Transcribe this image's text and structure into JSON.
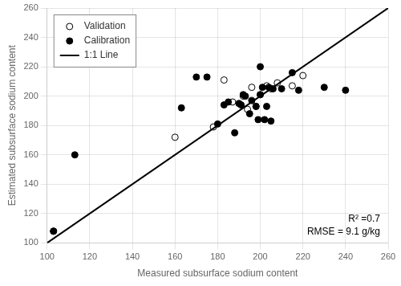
{
  "chart_data": {
    "type": "scatter",
    "xlabel": "Measured subsurface sodium content",
    "ylabel": "Estimated subsurface sodium content",
    "xlim": [
      100,
      260
    ],
    "ylim": [
      100,
      260
    ],
    "xticks": [
      100,
      120,
      140,
      160,
      180,
      200,
      220,
      240,
      260
    ],
    "yticks": [
      100,
      120,
      140,
      160,
      180,
      200,
      220,
      240,
      260
    ],
    "grid": true,
    "legend": "upper left",
    "annotations": [
      "R² =0.7",
      "RMSE = 9.1 g/kg"
    ],
    "series": [
      {
        "name": "Validation",
        "color": "#000000",
        "marker": "open_circle",
        "x": [
          160,
          178,
          183,
          187,
          192,
          194,
          196,
          198,
          200,
          203,
          205,
          208,
          215,
          220
        ],
        "values": [
          172,
          179,
          211,
          196,
          200,
          191,
          206,
          193,
          201,
          207,
          205,
          209,
          207,
          214
        ]
      },
      {
        "name": "Calibration",
        "color": "#000000",
        "marker": "circle",
        "x": [
          103,
          103,
          113,
          163,
          170,
          175,
          180,
          183,
          185,
          188,
          190,
          191,
          192,
          193,
          195,
          196,
          198,
          199,
          200,
          200,
          201,
          202,
          203,
          204,
          205,
          206,
          210,
          215,
          218,
          230,
          240
        ],
        "values": [
          108,
          108,
          160,
          192,
          213,
          213,
          181,
          194,
          196,
          175,
          195,
          194,
          201,
          200,
          188,
          197,
          193,
          184,
          201,
          220,
          206,
          184,
          193,
          206,
          183,
          205,
          205,
          216,
          204,
          206,
          204
        ]
      },
      {
        "name": "1:1 Line",
        "color": "#000000",
        "type": "line",
        "line_style": "solid",
        "x": [
          100,
          260
        ],
        "values": [
          100,
          260
        ]
      }
    ]
  }
}
